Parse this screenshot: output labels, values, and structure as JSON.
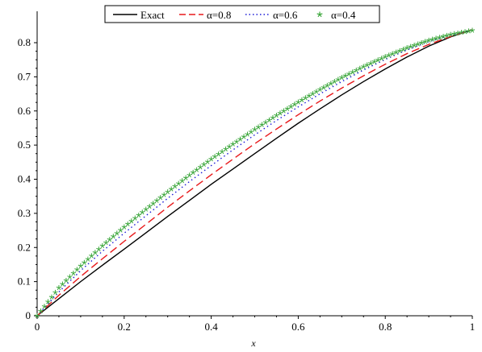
{
  "chart_data": {
    "type": "line",
    "title": "",
    "xlabel": "x",
    "ylabel": "",
    "xlim": [
      0,
      1
    ],
    "ylim": [
      0,
      0.84
    ],
    "x_ticks": [
      "0",
      "0.2",
      "0.4",
      "0.6",
      "0.8",
      "1"
    ],
    "y_ticks": [
      "0",
      "0.1",
      "0.2",
      "0.3",
      "0.4",
      "0.5",
      "0.6",
      "0.7",
      "0.8"
    ],
    "grid": false,
    "legend_position": "top-center",
    "x": [
      0,
      0.05,
      0.1,
      0.15,
      0.2,
      0.25,
      0.3,
      0.35,
      0.4,
      0.45,
      0.5,
      0.55,
      0.6,
      0.65,
      0.7,
      0.75,
      0.8,
      0.85,
      0.9,
      0.95,
      1.0
    ],
    "series": [
      {
        "name": "Exact",
        "color": "#000000",
        "style": "solid",
        "values": [
          0,
          0.05,
          0.1,
          0.148,
          0.195,
          0.243,
          0.291,
          0.338,
          0.385,
          0.43,
          0.475,
          0.52,
          0.564,
          0.606,
          0.647,
          0.686,
          0.723,
          0.758,
          0.79,
          0.817,
          0.838
        ]
      },
      {
        "name": "α=0.8",
        "color": "#e8191b",
        "style": "dashed",
        "values": [
          0,
          0.06,
          0.115,
          0.167,
          0.218,
          0.268,
          0.318,
          0.366,
          0.413,
          0.459,
          0.504,
          0.547,
          0.589,
          0.629,
          0.667,
          0.703,
          0.737,
          0.768,
          0.795,
          0.818,
          0.838
        ]
      },
      {
        "name": "α=0.6",
        "color": "#1b1bd6",
        "style": "dotted",
        "values": [
          0,
          0.07,
          0.132,
          0.189,
          0.242,
          0.293,
          0.344,
          0.393,
          0.44,
          0.486,
          0.53,
          0.572,
          0.612,
          0.65,
          0.686,
          0.72,
          0.751,
          0.779,
          0.803,
          0.822,
          0.838
        ]
      },
      {
        "name": "α=0.4",
        "color": "#3aa63a",
        "style": "star-markers",
        "values": [
          0,
          0.082,
          0.146,
          0.205,
          0.26,
          0.312,
          0.363,
          0.412,
          0.459,
          0.503,
          0.546,
          0.587,
          0.626,
          0.663,
          0.698,
          0.73,
          0.759,
          0.785,
          0.807,
          0.824,
          0.836
        ]
      }
    ]
  }
}
